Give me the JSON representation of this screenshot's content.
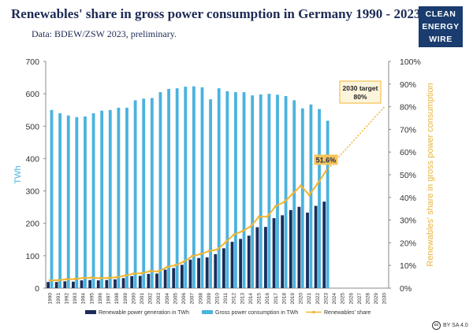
{
  "header": {
    "title": "Renewables' share in gross power consumption in Germany 1990 - 2023.",
    "subtitle": "Data: BDEW/ZSW 2023, preliminary."
  },
  "logo": {
    "line1": "CLEAN",
    "line2": "ENERGY",
    "line3": "WIRE"
  },
  "license": {
    "text": "BY SA 4.0",
    "icon": "cc-icon"
  },
  "colors": {
    "renewable": "#1a2d5a",
    "gross": "#4bb3df",
    "share": "#f2b632",
    "target_line": "#f2b632",
    "right_axis_label": "#e8b43c"
  },
  "chart_data": {
    "type": "bar",
    "categories": [
      "1990",
      "1991",
      "1992",
      "1993",
      "1994",
      "1995",
      "1996",
      "1997",
      "1998",
      "1999",
      "2000",
      "2001",
      "2002",
      "2003",
      "2004",
      "2005",
      "2006",
      "2007",
      "2008",
      "2009",
      "2010",
      "2011",
      "2012",
      "2013",
      "2014",
      "2015",
      "2016",
      "2017",
      "2018",
      "2019",
      "2020",
      "2021",
      "2022",
      "2023",
      "2024",
      "2025",
      "2026",
      "2027",
      "2028",
      "2029",
      "2030"
    ],
    "series": [
      {
        "name": "Renewable power generation in TWh",
        "values": [
          19,
          19,
          21,
          20,
          24,
          25,
          24,
          25,
          27,
          31,
          37,
          38,
          44,
          45,
          57,
          62,
          72,
          88,
          93,
          95,
          105,
          123,
          143,
          152,
          162,
          188,
          189,
          216,
          225,
          241,
          251,
          233,
          254,
          267,
          null,
          null,
          null,
          null,
          null,
          null,
          null
        ]
      },
      {
        "name": "Gross power consumption in TWh",
        "values": [
          550,
          540,
          533,
          528,
          530,
          540,
          548,
          550,
          557,
          557,
          580,
          585,
          587,
          605,
          615,
          617,
          622,
          623,
          620,
          583,
          617,
          608,
          605,
          605,
          595,
          598,
          600,
          597,
          593,
          580,
          555,
          567,
          553,
          517,
          null,
          null,
          null,
          null,
          null,
          null,
          null
        ]
      },
      {
        "name": "Renewables' share",
        "axis": "right",
        "values": [
          3.4,
          3.5,
          3.9,
          4.0,
          4.5,
          4.6,
          4.4,
          4.5,
          4.8,
          5.5,
          6.4,
          6.6,
          7.5,
          7.4,
          9.3,
          10.1,
          11.6,
          14.1,
          15.0,
          16.3,
          17.0,
          20.2,
          23.6,
          25.1,
          27.2,
          31.5,
          31.5,
          36.2,
          37.9,
          41.5,
          45.2,
          41.1,
          46.0,
          51.6,
          null,
          null,
          null,
          null,
          null,
          null,
          null
        ]
      }
    ],
    "target": {
      "x_from": "2023",
      "x_to": "2030",
      "from_value": 51.6,
      "to_value": 80,
      "label_line1": "2030 target",
      "label_line2": "80%"
    },
    "last_value_label": "51.6%",
    "ylabel": "TWh",
    "ylabel_right": "Renewables' share in gross power consumption",
    "ylim": [
      0,
      700
    ],
    "yticks": [
      0,
      100,
      200,
      300,
      400,
      500,
      600,
      700
    ],
    "ylim_right": [
      0,
      100
    ],
    "yticks_right": [
      "0%",
      "10%",
      "20%",
      "30%",
      "40%",
      "50%",
      "60%",
      "70%",
      "80%",
      "90%",
      "100%"
    ],
    "grid": false,
    "legend": {
      "position": "bottom",
      "items": [
        "Renewable power generation in TWh",
        "Gross power consumption in TWh",
        "Renewables' share"
      ]
    }
  }
}
